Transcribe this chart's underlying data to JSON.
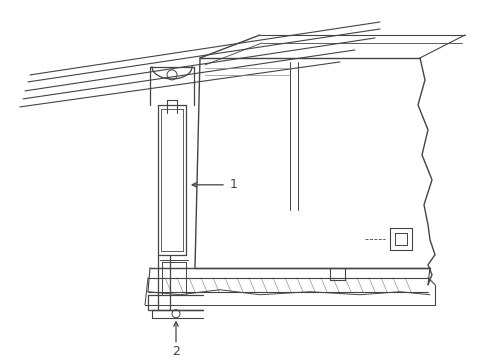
{
  "background_color": "#ffffff",
  "line_color": "#444444",
  "line_width": 0.9,
  "label1_text": "1",
  "label2_text": "2"
}
